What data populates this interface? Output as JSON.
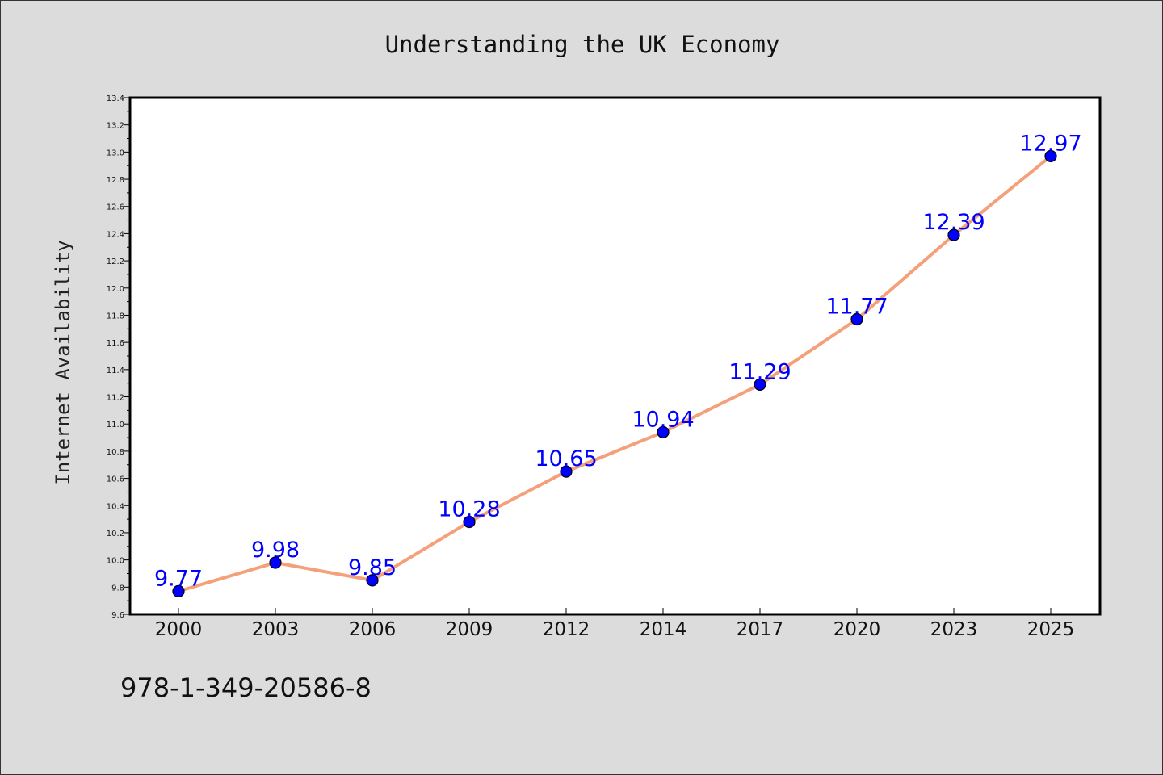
{
  "page": {
    "footer_code": "978-1-349-20586-8"
  },
  "chart_data": {
    "type": "line",
    "title": "Understanding the UK Economy",
    "xlabel": "",
    "ylabel": "Internet Availability",
    "categories": [
      "2000",
      "2003",
      "2006",
      "2009",
      "2012",
      "2014",
      "2017",
      "2020",
      "2023",
      "2025"
    ],
    "series": [
      {
        "values": [
          9.77,
          9.98,
          9.85,
          10.28,
          10.65,
          10.94,
          11.29,
          11.77,
          12.39,
          12.97
        ],
        "line_color": "#f4a07a",
        "marker_color": "#0000ff",
        "label_color": "#0000ff"
      }
    ],
    "ylim": [
      9.6,
      13.4
    ],
    "yticks": [
      "9.6",
      "9.8",
      "10.0",
      "10.2",
      "10.4",
      "10.6",
      "10.8",
      "11.0",
      "11.2",
      "11.4",
      "11.6",
      "11.8",
      "12.0",
      "12.2",
      "12.4",
      "12.6",
      "12.8",
      "13.0",
      "13.2",
      "13.4"
    ],
    "data_labels": [
      "9.77",
      "9.98",
      "9.85",
      "10.28",
      "10.65",
      "10.94",
      "11.29",
      "11.77",
      "12.39",
      "12.97"
    ],
    "grid": false,
    "legend": "none"
  }
}
